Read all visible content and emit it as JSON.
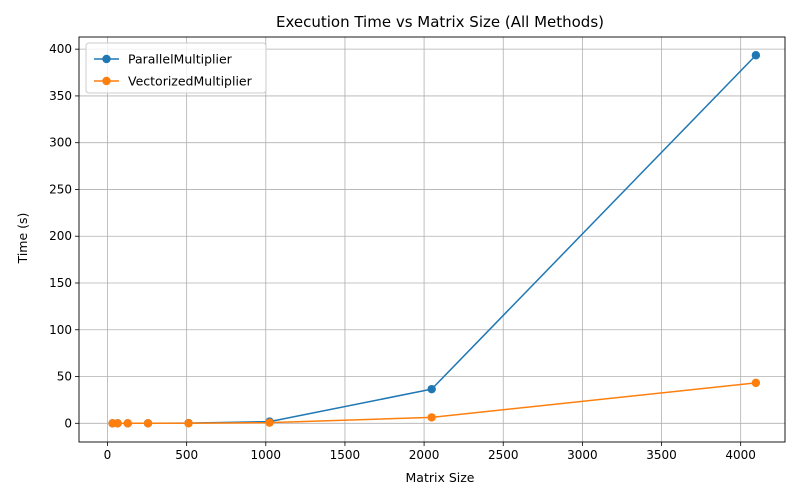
{
  "chart_data": {
    "type": "line",
    "title": "Execution Time vs Matrix Size (All Methods)",
    "xlabel": "Matrix Size",
    "ylabel": "Time (s)",
    "xlim": [
      -180,
      4280
    ],
    "ylim": [
      -20,
      413
    ],
    "xticks": [
      0,
      500,
      1000,
      1500,
      2000,
      2500,
      3000,
      3500,
      4000
    ],
    "yticks": [
      0,
      50,
      100,
      150,
      200,
      250,
      300,
      350,
      400
    ],
    "grid": true,
    "legend_position": "upper-left",
    "series": [
      {
        "name": "ParallelMultiplier",
        "color": "#1f77b4",
        "x": [
          32,
          64,
          128,
          256,
          512,
          1024,
          2048,
          4096
        ],
        "y": [
          0.0,
          0.0,
          0.0,
          0.02,
          0.2,
          1.8,
          36.5,
          393.5
        ]
      },
      {
        "name": "VectorizedMultiplier",
        "color": "#ff7f0e",
        "x": [
          32,
          64,
          128,
          256,
          512,
          1024,
          2048,
          4096
        ],
        "y": [
          0.0,
          0.0,
          0.0,
          0.01,
          0.08,
          0.7,
          6.3,
          43.2
        ]
      }
    ]
  }
}
